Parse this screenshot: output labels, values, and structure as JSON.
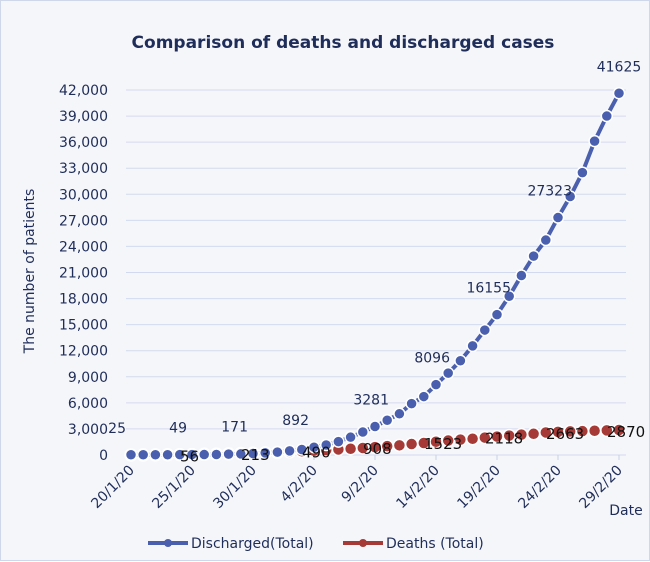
{
  "chart_data": {
    "type": "line",
    "title": "Comparison of deaths and discharged cases",
    "xlabel": "Date",
    "ylabel": "The number of patients",
    "ylim": [
      0,
      42000
    ],
    "yticks": [
      "0",
      "3,000",
      "6,000",
      "9,000",
      "12,000",
      "15,000",
      "18,000",
      "21,000",
      "24,000",
      "27,000",
      "30,000",
      "33,000",
      "36,000",
      "39,000",
      "42,000"
    ],
    "xticks": [
      "20/1/20",
      "25/1/20",
      "30/1/20",
      "4/2/20",
      "9/2/20",
      "14/2/20",
      "19/2/20",
      "24/2/20",
      "29/2/20"
    ],
    "grid": true,
    "legend": "bottom",
    "series": [
      {
        "name": "Discharged(Total)",
        "color": "#4a5fad",
        "values": [
          25,
          25,
          28,
          34,
          38,
          49,
          51,
          60,
          103,
          124,
          171,
          243,
          328,
          475,
          632,
          892,
          1153,
          1540,
          2050,
          2649,
          3281,
          3996,
          4740,
          5911,
          6723,
          8096,
          9419,
          10844,
          12552,
          14376,
          16155,
          18264,
          20659,
          22888,
          24734,
          27323,
          29745,
          32495,
          36117,
          39002,
          41625
        ],
        "labels": [
          "25",
          "49",
          "171",
          "892",
          "3281",
          "8096",
          "16155",
          "27323",
          "41625"
        ]
      },
      {
        "name": "Deaths (Total)",
        "color": "#a53a36",
        "values": [
          6,
          9,
          17,
          25,
          41,
          56,
          80,
          106,
          132,
          170,
          213,
          259,
          304,
          361,
          425,
          490,
          563,
          636,
          722,
          811,
          908,
          1016,
          1113,
          1259,
          1380,
          1523,
          1665,
          1770,
          1868,
          2004,
          2118,
          2236,
          2345,
          2442,
          2592,
          2663,
          2715,
          2744,
          2788,
          2835,
          2870
        ],
        "labels": [
          "56",
          "213",
          "490",
          "908",
          "1523",
          "2118",
          "2663",
          "2870"
        ]
      }
    ]
  }
}
